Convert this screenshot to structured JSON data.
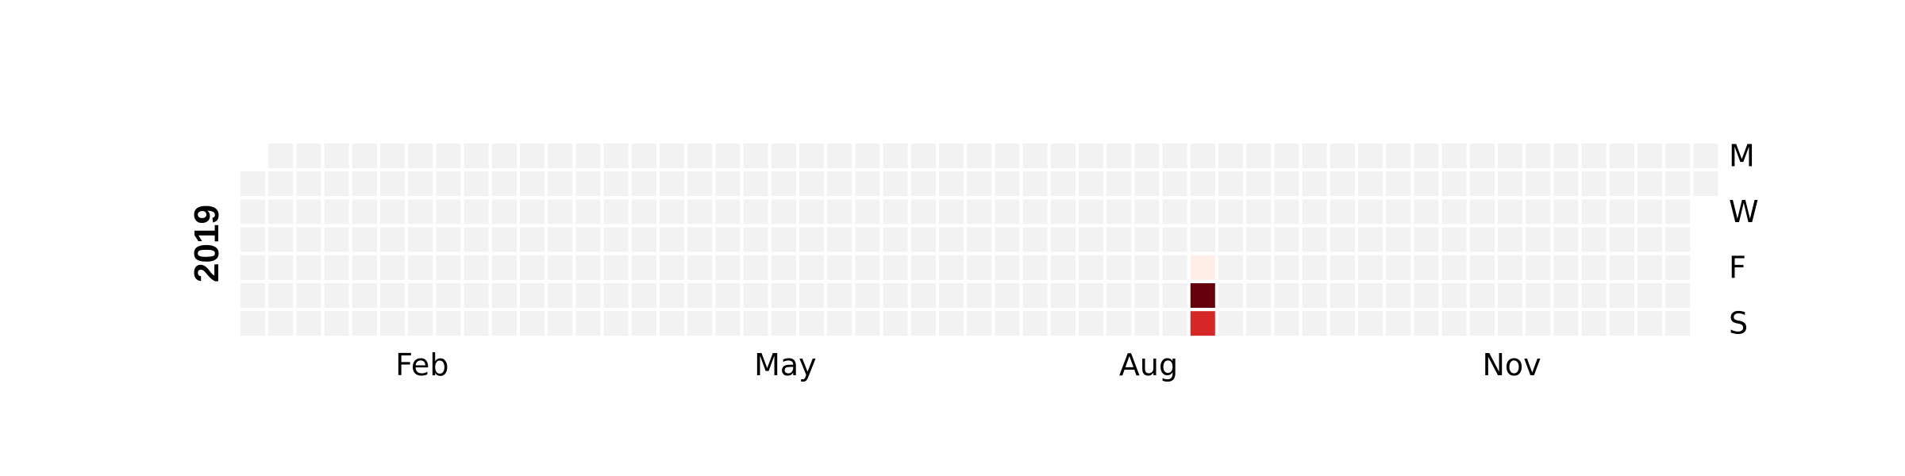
{
  "chart_data": {
    "type": "heatmap",
    "title": "",
    "year_label": "2019",
    "start_date": "2019-01-01",
    "end_date": "2019-12-31",
    "week_start": "Monday",
    "weekday_labels": [
      "M",
      "",
      "W",
      "",
      "F",
      "",
      "S"
    ],
    "month_labels": [
      "Feb",
      "May",
      "Aug",
      "Nov"
    ],
    "values": [
      {
        "date": "2019-08-30",
        "value": 0.03
      },
      {
        "date": "2019-08-31",
        "value": 1.0
      },
      {
        "date": "2019-09-01",
        "value": 0.7
      }
    ],
    "colors": {
      "empty": "#f2f2f2",
      "colormap": [
        "#fff5f0",
        "#fcbba1",
        "#fb6a4a",
        "#cb181d",
        "#67000d"
      ]
    }
  }
}
